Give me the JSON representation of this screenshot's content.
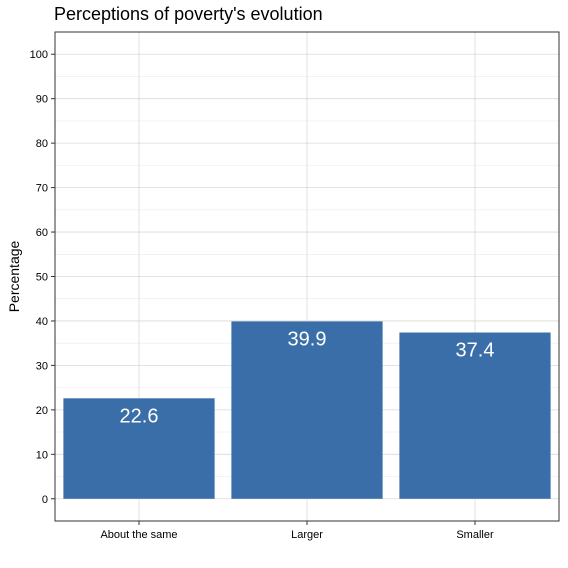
{
  "chart_data": {
    "type": "bar",
    "title": "Perceptions of poverty's evolution",
    "xlabel": "",
    "ylabel": "Percentage",
    "categories": [
      "About the same",
      "Larger",
      "Smaller"
    ],
    "values": [
      22.6,
      39.9,
      37.4
    ],
    "value_labels": [
      "22.6",
      "39.9",
      "37.4"
    ],
    "ylim": [
      0,
      100
    ],
    "yticks": [
      0,
      10,
      20,
      30,
      40,
      50,
      60,
      70,
      80,
      90,
      100
    ],
    "grid": true,
    "legend": "none",
    "bar_color": "#3a6ea8"
  }
}
